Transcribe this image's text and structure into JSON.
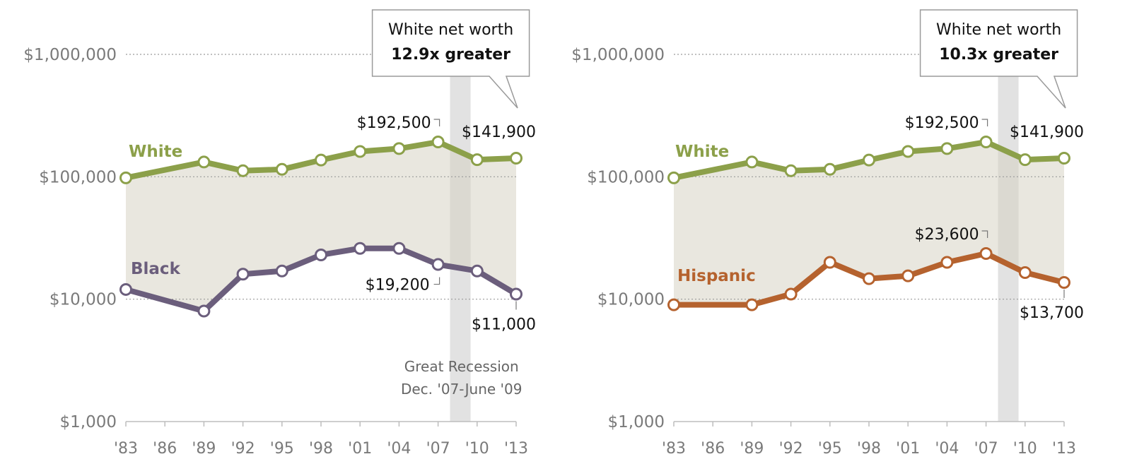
{
  "chart_data": [
    {
      "type": "line",
      "y_scale": "log",
      "ylim": [
        1000,
        1000000
      ],
      "y_ticks": [
        "$1,000",
        "$10,000",
        "$100,000",
        "$1,000,000"
      ],
      "categories": [
        "'83",
        "'86",
        "'89",
        "'92",
        "'95",
        "'98",
        "'01",
        "'04",
        "'07",
        "'10",
        "'13"
      ],
      "series": [
        {
          "name": "White",
          "color": "#8ca04a",
          "x": [
            1983,
            1989,
            1992,
            1995,
            1998,
            2001,
            2004,
            2007,
            2010,
            2013
          ],
          "values": [
            98000,
            132000,
            112000,
            115000,
            137000,
            161000,
            170000,
            192500,
            138000,
            141900
          ]
        },
        {
          "name": "Black",
          "color": "#6b5e7c",
          "x": [
            1983,
            1989,
            1992,
            1995,
            1998,
            2001,
            2004,
            2007,
            2010,
            2013
          ],
          "values": [
            12000,
            8000,
            16000,
            17000,
            23000,
            26000,
            26000,
            19200,
            17000,
            11000
          ]
        }
      ],
      "labels": {
        "white_2007": "$192,500",
        "white_2013": "$141,900",
        "minority_2007": "$19,200",
        "minority_2013": "$11,000"
      },
      "callout": {
        "line1": "White net worth",
        "line2": "12.9x greater"
      },
      "recession": {
        "line1": "Great Recession",
        "line2": "Dec. '07-June '09"
      }
    },
    {
      "type": "line",
      "y_scale": "log",
      "ylim": [
        1000,
        1000000
      ],
      "y_ticks": [
        "$1,000",
        "$10,000",
        "$100,000",
        "$1,000,000"
      ],
      "categories": [
        "'83",
        "'86",
        "'89",
        "'92",
        "'95",
        "'98",
        "'01",
        "'04",
        "'07",
        "'10",
        "'13"
      ],
      "series": [
        {
          "name": "White",
          "color": "#8ca04a",
          "x": [
            1983,
            1989,
            1992,
            1995,
            1998,
            2001,
            2004,
            2007,
            2010,
            2013
          ],
          "values": [
            98000,
            132000,
            112000,
            115000,
            137000,
            161000,
            170000,
            192500,
            138000,
            141900
          ]
        },
        {
          "name": "Hispanic",
          "color": "#b5622e",
          "x": [
            1983,
            1989,
            1992,
            1995,
            1998,
            2001,
            2004,
            2007,
            2010,
            2013
          ],
          "values": [
            9000,
            9000,
            11000,
            20000,
            14700,
            15500,
            20000,
            23600,
            16500,
            13700
          ]
        }
      ],
      "labels": {
        "white_2007": "$192,500",
        "white_2013": "$141,900",
        "minority_2007": "$23,600",
        "minority_2013": "$13,700"
      },
      "callout": {
        "line1": "White net worth",
        "line2": "10.3x greater"
      }
    }
  ]
}
